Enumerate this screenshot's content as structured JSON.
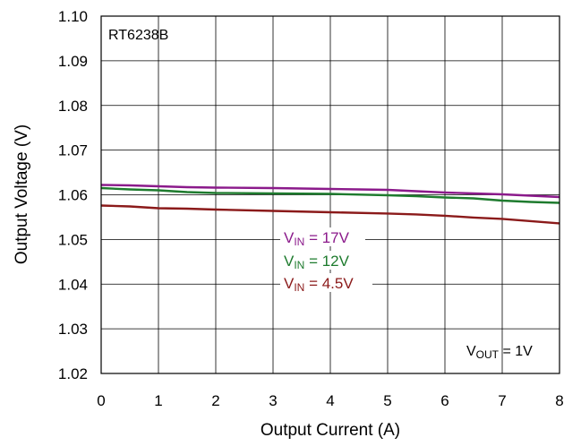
{
  "chart_data": {
    "type": "line",
    "title": "",
    "annotation": "RT6238B",
    "xlabel": "Output Current (A)",
    "ylabel": "Output Voltage (V)",
    "xlim": [
      0,
      8
    ],
    "ylim": [
      1.02,
      1.1
    ],
    "x_ticks": [
      "0",
      "1",
      "2",
      "3",
      "4",
      "5",
      "6",
      "7",
      "8"
    ],
    "y_ticks": [
      "1.10",
      "1.09",
      "1.08",
      "1.07",
      "1.06",
      "1.05",
      "1.04",
      "1.03",
      "1.02"
    ],
    "grid": true,
    "legend_placement": "center",
    "condition": {
      "prefix": "V",
      "sub": "OUT",
      "value": " =  1V"
    },
    "series": [
      {
        "name": "VIN = 17V",
        "label_prefix": "V",
        "label_sub": "IN",
        "label_value": " = 17V",
        "color": "#8B1A8B",
        "x": [
          0,
          0.5,
          1,
          1.5,
          2,
          3,
          3.5,
          4,
          4.5,
          5,
          5.5,
          6,
          6.5,
          7,
          7.5,
          8
        ],
        "y": [
          1.0622,
          1.0621,
          1.0619,
          1.0617,
          1.0616,
          1.0615,
          1.0614,
          1.0613,
          1.0612,
          1.0611,
          1.0608,
          1.0605,
          1.0603,
          1.0601,
          1.0598,
          1.0595
        ]
      },
      {
        "name": "VIN = 12V",
        "label_prefix": "V",
        "label_sub": "IN",
        "label_value": " = 12V",
        "color": "#1E7B2E",
        "x": [
          0,
          0.5,
          1,
          1.5,
          2,
          3,
          4,
          5,
          5.5,
          6,
          6.5,
          7,
          7.5,
          8
        ],
        "y": [
          1.0615,
          1.0612,
          1.061,
          1.0606,
          1.0604,
          1.0603,
          1.0602,
          1.0599,
          1.0597,
          1.0594,
          1.0592,
          1.0587,
          1.0584,
          1.0582
        ]
      },
      {
        "name": "VIN = 4.5V",
        "label_prefix": "V",
        "label_sub": "IN",
        "label_value": " = 4.5V",
        "color": "#8B1A1A",
        "x": [
          0,
          0.5,
          1,
          1.5,
          2,
          3,
          4,
          5,
          5.5,
          6,
          6.5,
          7,
          7.5,
          8
        ],
        "y": [
          1.0576,
          1.0574,
          1.057,
          1.0569,
          1.0567,
          1.0564,
          1.0561,
          1.0558,
          1.0556,
          1.0553,
          1.0549,
          1.0546,
          1.0541,
          1.0536
        ]
      }
    ]
  }
}
